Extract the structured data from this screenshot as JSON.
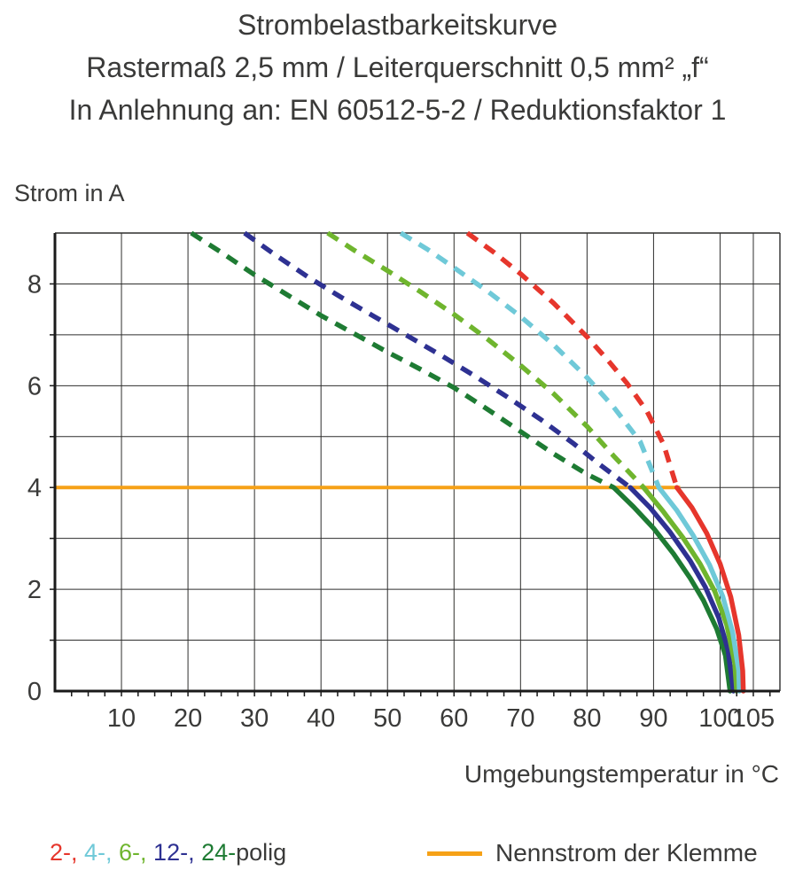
{
  "title": {
    "line1": "Strombelastbarkeitskurve",
    "line2": "Rastermaß 2,5 mm / Leiterquerschnitt 0,5 mm² „f“",
    "line3": "In Anlehnung an: EN 60512-5-2 / Reduktionsfaktor 1"
  },
  "chart_data": {
    "type": "line",
    "title": "Strombelastbarkeitskurve",
    "xlabel": "Umgebungstemperatur in °C",
    "ylabel": "Strom in A",
    "xlim": [
      0,
      109
    ],
    "ylim": [
      0,
      9
    ],
    "x_ticks": [
      10,
      20,
      30,
      40,
      50,
      60,
      70,
      80,
      90,
      100,
      105
    ],
    "y_ticks": [
      0,
      2,
      4,
      6,
      8
    ],
    "x_gridlines": [
      10,
      20,
      30,
      40,
      50,
      60,
      70,
      80,
      90,
      100,
      105
    ],
    "y_gridlines": [
      1,
      2,
      3,
      4,
      5,
      6,
      7,
      8
    ],
    "grid": true,
    "legend_position": "bottom",
    "nominal_line": {
      "label": "Nennstrom der Klemme",
      "value": 4,
      "x_end": 94,
      "color": "#F6A117"
    },
    "series": [
      {
        "name": "24-polig",
        "color": "#1E7B33",
        "dashed": [
          [
            20.5,
            9
          ],
          [
            25,
            8.62
          ],
          [
            30,
            8.18
          ],
          [
            35,
            7.78
          ],
          [
            40,
            7.38
          ],
          [
            45,
            7.02
          ],
          [
            50,
            6.66
          ],
          [
            55,
            6.32
          ],
          [
            60,
            5.96
          ],
          [
            65,
            5.54
          ],
          [
            70,
            5.1
          ],
          [
            75,
            4.66
          ],
          [
            80,
            4.26
          ],
          [
            84,
            4.0
          ]
        ],
        "solid": [
          [
            84,
            4.0
          ],
          [
            87,
            3.62
          ],
          [
            90,
            3.2
          ],
          [
            93,
            2.7
          ],
          [
            95.5,
            2.22
          ],
          [
            97.5,
            1.78
          ],
          [
            99.5,
            1.22
          ],
          [
            100.8,
            0.7
          ],
          [
            101.5,
            0
          ]
        ]
      },
      {
        "name": "12-polig",
        "color": "#2E3192",
        "dashed": [
          [
            28.5,
            9
          ],
          [
            33,
            8.58
          ],
          [
            38,
            8.14
          ],
          [
            43,
            7.74
          ],
          [
            48,
            7.36
          ],
          [
            53,
            6.98
          ],
          [
            58,
            6.6
          ],
          [
            63,
            6.2
          ],
          [
            68,
            5.78
          ],
          [
            73,
            5.34
          ],
          [
            78,
            4.86
          ],
          [
            82,
            4.44
          ],
          [
            86.5,
            4.0
          ]
        ],
        "solid": [
          [
            86.5,
            4.0
          ],
          [
            89.5,
            3.6
          ],
          [
            92.5,
            3.12
          ],
          [
            95.5,
            2.56
          ],
          [
            97.8,
            2.04
          ],
          [
            99.8,
            1.44
          ],
          [
            101.2,
            0.8
          ],
          [
            102,
            0
          ]
        ]
      },
      {
        "name": "6-polig",
        "color": "#6FB52E",
        "dashed": [
          [
            41,
            9
          ],
          [
            45,
            8.66
          ],
          [
            50,
            8.26
          ],
          [
            55,
            7.84
          ],
          [
            60,
            7.4
          ],
          [
            65,
            6.92
          ],
          [
            70,
            6.4
          ],
          [
            75,
            5.84
          ],
          [
            80,
            5.2
          ],
          [
            84,
            4.62
          ],
          [
            88.5,
            4.0
          ]
        ],
        "solid": [
          [
            88.5,
            4.0
          ],
          [
            91.5,
            3.52
          ],
          [
            94.5,
            3.0
          ],
          [
            97,
            2.5
          ],
          [
            99.2,
            1.96
          ],
          [
            101,
            1.3
          ],
          [
            102.2,
            0.55
          ],
          [
            102.5,
            0
          ]
        ]
      },
      {
        "name": "4-polig",
        "color": "#6FC9D8",
        "dashed": [
          [
            52,
            9
          ],
          [
            56,
            8.68
          ],
          [
            60,
            8.32
          ],
          [
            65,
            7.86
          ],
          [
            70,
            7.36
          ],
          [
            75,
            6.8
          ],
          [
            80,
            6.16
          ],
          [
            84,
            5.58
          ],
          [
            88,
            4.9
          ],
          [
            90.8,
            4.0
          ]
        ],
        "solid": [
          [
            90.8,
            4.0
          ],
          [
            93.5,
            3.55
          ],
          [
            96,
            3.05
          ],
          [
            98.4,
            2.48
          ],
          [
            100.4,
            1.86
          ],
          [
            101.9,
            1.15
          ],
          [
            102.8,
            0.4
          ],
          [
            102.9,
            0
          ]
        ]
      },
      {
        "name": "2-polig",
        "color": "#E6362C",
        "dashed": [
          [
            62,
            9
          ],
          [
            66,
            8.62
          ],
          [
            70,
            8.2
          ],
          [
            75,
            7.62
          ],
          [
            80,
            6.96
          ],
          [
            83,
            6.52
          ],
          [
            86,
            6.05
          ],
          [
            89,
            5.5
          ],
          [
            91.5,
            4.85
          ],
          [
            93.5,
            4.0
          ]
        ],
        "solid": [
          [
            93.5,
            4.0
          ],
          [
            95.8,
            3.6
          ],
          [
            98,
            3.1
          ],
          [
            100,
            2.5
          ],
          [
            101.6,
            1.85
          ],
          [
            102.8,
            1.1
          ],
          [
            103.4,
            0.4
          ],
          [
            103.5,
            0
          ]
        ]
      }
    ]
  },
  "legend": {
    "poles_segments": [
      {
        "text": "2-, ",
        "color": "#E6362C"
      },
      {
        "text": "4-, ",
        "color": "#6FC9D8"
      },
      {
        "text": "6-, ",
        "color": "#6FB52E"
      },
      {
        "text": "12-, ",
        "color": "#2E3192"
      },
      {
        "text": "24-",
        "color": "#1E7B33"
      },
      {
        "text": "polig",
        "color": "#3A3A39"
      }
    ]
  },
  "colors": {
    "grid": "#2E2E2D",
    "axis": "#1A1A1A",
    "text": "#3A3A39"
  }
}
